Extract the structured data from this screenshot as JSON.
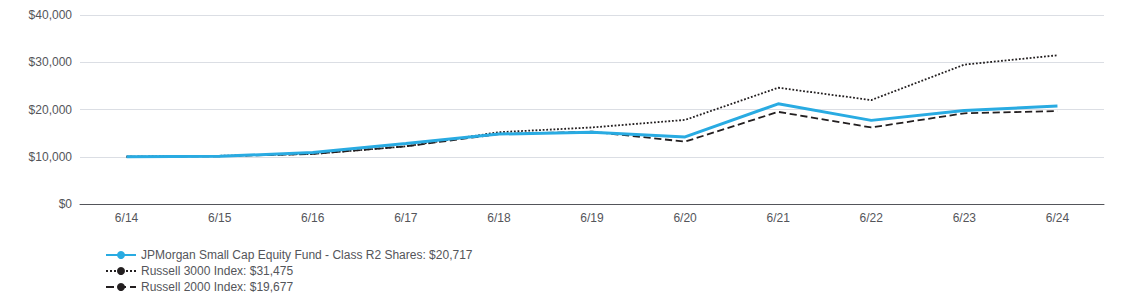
{
  "chart_data": {
    "type": "line",
    "categories": [
      "6/14",
      "6/15",
      "6/16",
      "6/17",
      "6/18",
      "6/19",
      "6/20",
      "6/21",
      "6/22",
      "6/23",
      "6/24"
    ],
    "series": [
      {
        "name": "JPMorgan Small Cap Equity Fund - Class R2 Shares: $20,717",
        "color": "#29abe2",
        "line_style": "solid",
        "values": [
          10000,
          10100,
          10900,
          12800,
          14800,
          15200,
          14200,
          21200,
          17700,
          19800,
          20717
        ]
      },
      {
        "name": "Russell 3000 Index: $31,475",
        "color": "#231f20",
        "line_style": "dotted",
        "values": [
          10000,
          10200,
          10600,
          12200,
          15200,
          16200,
          17800,
          24600,
          22000,
          29500,
          31475
        ]
      },
      {
        "name": "Russell 2000 Index: $19,677",
        "color": "#231f20",
        "line_style": "dashed",
        "values": [
          10000,
          10100,
          10600,
          12200,
          14800,
          15300,
          13200,
          19500,
          16200,
          19200,
          19677
        ]
      }
    ],
    "ylim": [
      0,
      40000
    ],
    "yticks": [
      {
        "value": 0,
        "label": "$0"
      },
      {
        "value": 10000,
        "label": "$10,000"
      },
      {
        "value": 20000,
        "label": "$20,000"
      },
      {
        "value": 30000,
        "label": "$30,000"
      },
      {
        "value": 40000,
        "label": "$40,000"
      }
    ],
    "grid": true,
    "legend": "bottom"
  }
}
